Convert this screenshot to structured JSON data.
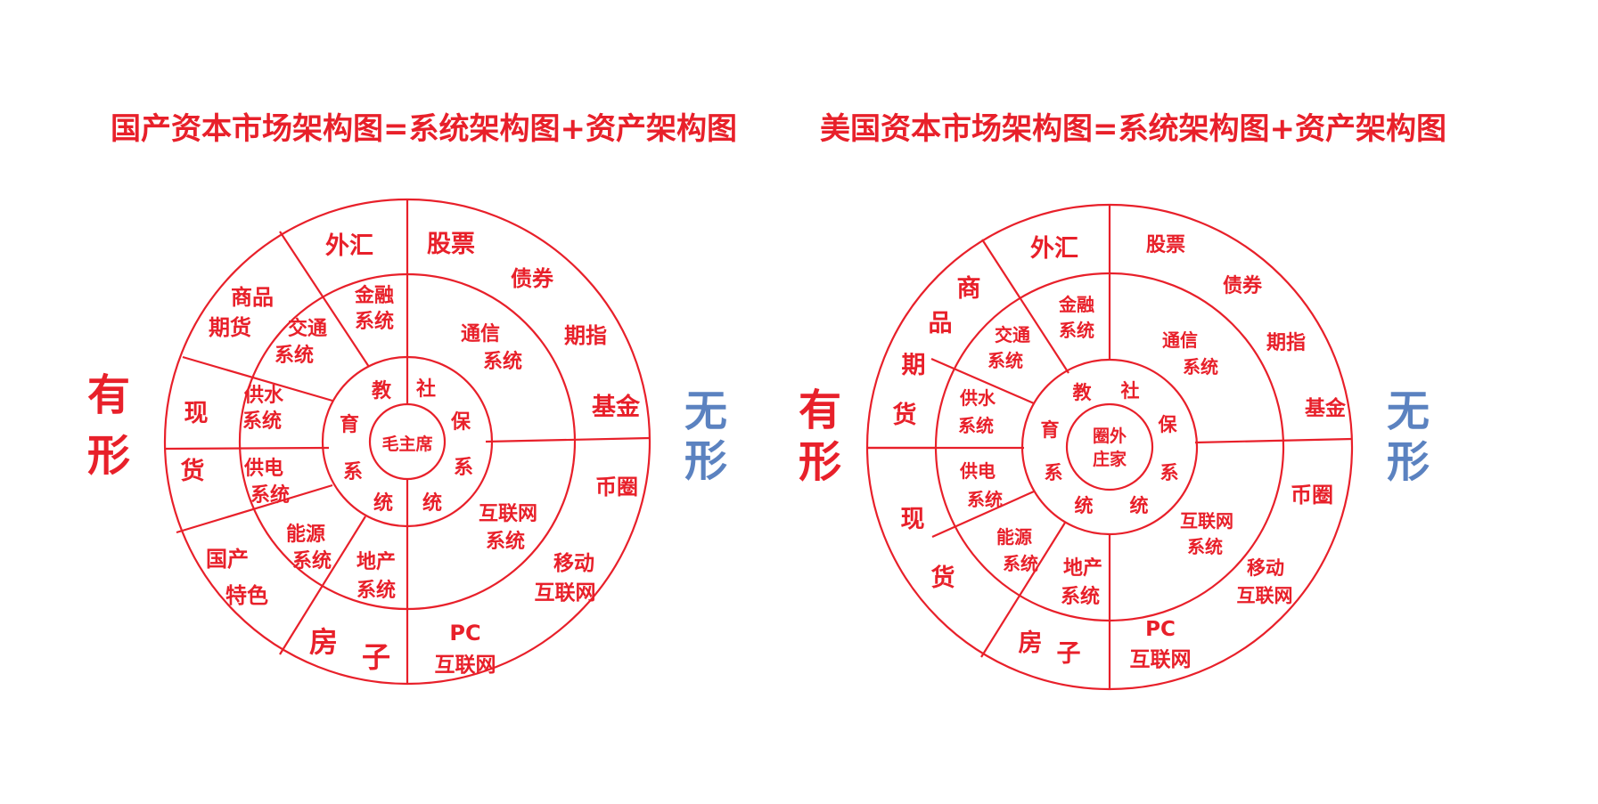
{
  "colors": {
    "red": "#e8202a",
    "blue": "#5b82c0"
  },
  "diagrams": [
    {
      "id": "china",
      "title": "国产资本市场架构图=系统架构图+资产架构图",
      "left_label": [
        "有",
        "形"
      ],
      "right_label": [
        "无",
        "形"
      ],
      "center": [
        "毛主席"
      ],
      "ring1": [
        "教",
        "社",
        "育",
        "保",
        "系",
        "系",
        "统",
        "统"
      ],
      "ring2": [
        "金融",
        "系统",
        "交通",
        "系统",
        "供水",
        "系统",
        "供电",
        "系统",
        "能源",
        "系统",
        "地产",
        "系统",
        "通信",
        "系统",
        "互联网",
        "系统"
      ],
      "ring3_left": [
        "外汇",
        "商品",
        "期货",
        "现",
        "货",
        "国产",
        "特色",
        "房",
        "子"
      ],
      "ring3_right": [
        "股票",
        "债券",
        "期指",
        "基金",
        "币圈",
        "移动",
        "互联网",
        "PC",
        "互联网"
      ]
    },
    {
      "id": "usa",
      "title": "美国资本市场架构图=系统架构图+资产架构图",
      "left_label": [
        "有",
        "形"
      ],
      "right_label": [
        "无",
        "形"
      ],
      "center": [
        "圈外",
        "庄家"
      ],
      "ring1": [
        "教",
        "社",
        "育",
        "保",
        "系",
        "系",
        "统",
        "统"
      ],
      "ring2": [
        "金融",
        "系统",
        "交通",
        "系统",
        "供水",
        "系统",
        "供电",
        "系统",
        "能源",
        "系统",
        "地产",
        "系统",
        "通信",
        "系统",
        "互联网",
        "系统"
      ],
      "ring3_left": [
        "外汇",
        "商",
        "品",
        "期",
        "货",
        "现",
        "货",
        "房",
        "子"
      ],
      "ring3_right": [
        "股票",
        "债券",
        "期指",
        "基金",
        "币圈",
        "移动",
        "互联网",
        "PC",
        "互联网"
      ]
    }
  ]
}
